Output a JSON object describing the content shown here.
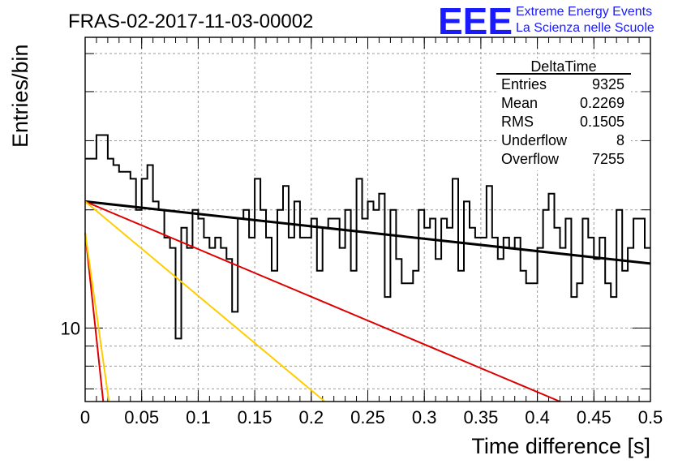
{
  "logo": {
    "mark": "EEE",
    "line1": "Extreme Energy Events",
    "line2": "La Scienza nelle Scuole"
  },
  "stats": {
    "title": "DeltaTime",
    "rows": [
      {
        "label": "Entries",
        "value": "9325"
      },
      {
        "label": "Mean",
        "value": "0.2269"
      },
      {
        "label": "RMS",
        "value": "0.1505"
      },
      {
        "label": "Underflow",
        "value": "8"
      },
      {
        "label": "Overflow",
        "value": "7255"
      }
    ]
  },
  "colors": {
    "histogram": "#000000",
    "fit_main": "#000000",
    "red_line": "#dd0000",
    "orange_line": "#ffcc00",
    "grid": "#9a9a9a"
  },
  "chart_data": {
    "type": "line",
    "title": "FRAS-02-2017-11-03-00002",
    "xlabel": "Time difference [s]",
    "ylabel": "Entries/bin",
    "xlim": [
      0,
      0.5
    ],
    "ylim": [
      6.5,
      55
    ],
    "yscale": "log",
    "x_ticks": [
      "0",
      "0.05",
      "0.1",
      "0.15",
      "0.2",
      "0.25",
      "0.3",
      "0.35",
      "0.4",
      "0.45",
      "0.5"
    ],
    "y_ticks": [
      {
        "value": 10,
        "label": "10"
      }
    ],
    "grid": true,
    "histogram": {
      "bin_width": 0.005,
      "x_start": 0,
      "values": [
        27,
        27,
        31,
        31,
        27,
        26,
        25,
        25,
        24,
        20,
        24,
        26,
        21,
        20,
        17,
        16,
        9.4,
        18,
        16,
        20,
        19,
        17,
        16,
        17,
        16,
        15,
        11,
        19,
        20,
        17,
        24,
        20,
        17,
        14,
        20,
        23,
        17,
        21,
        17,
        17,
        19,
        14,
        18,
        19,
        19,
        16,
        20,
        14,
        24,
        19,
        21,
        20,
        22,
        12,
        20,
        15,
        13,
        13,
        14,
        20,
        18,
        19,
        15,
        19,
        18,
        24,
        14,
        21,
        18,
        17,
        17,
        23,
        17,
        15,
        17,
        16,
        17,
        14,
        13,
        13,
        16,
        20,
        22,
        18,
        16,
        19,
        12,
        13,
        19,
        17,
        15,
        17,
        13,
        12,
        20,
        14,
        16,
        19,
        19,
        16
      ]
    },
    "series": [
      {
        "values": [
          [
            0,
            21
          ],
          [
            0.5,
            14.6
          ]
        ]
      },
      {
        "values": [
          [
            0,
            21
          ],
          [
            0.42,
            6.5
          ]
        ]
      },
      {
        "values": [
          [
            0,
            17.5
          ],
          [
            0.016,
            6.5
          ]
        ]
      },
      {
        "values": [
          [
            0,
            21
          ],
          [
            0.212,
            6.5
          ]
        ]
      },
      {
        "values": [
          [
            0,
            17.5
          ],
          [
            0.021,
            6.5
          ]
        ]
      }
    ]
  }
}
